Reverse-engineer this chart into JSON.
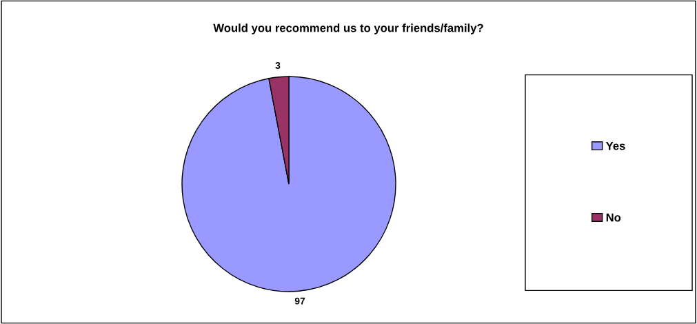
{
  "chart_data": {
    "type": "pie",
    "title": "Would you recommend us to your friends/family?",
    "categories": [
      "Yes",
      "No"
    ],
    "values": [
      97,
      3
    ],
    "colors": [
      "#9999ff",
      "#993366"
    ],
    "data_labels": true,
    "legend": "right"
  }
}
